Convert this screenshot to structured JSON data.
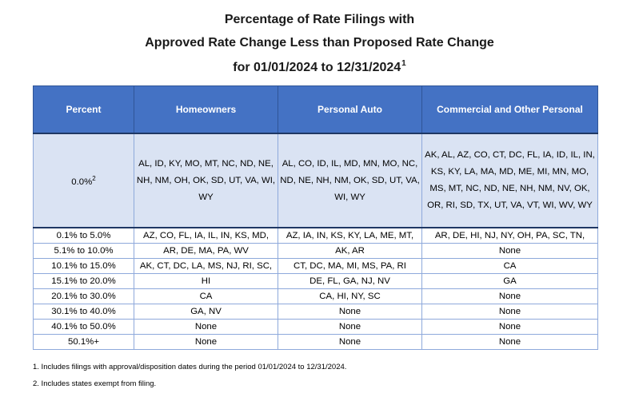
{
  "title": {
    "line1": "Percentage of Rate Filings with",
    "line2": "Approved Rate Change Less than Proposed Rate Change",
    "line3": "for 01/01/2024 to 12/31/2024",
    "line3_footnote_ref": "1"
  },
  "table": {
    "headers": [
      "Percent",
      "Homeowners",
      "Personal Auto",
      "Commercial and Other Personal"
    ],
    "zero_row": {
      "percent": "0.0%",
      "percent_footnote_ref": "2",
      "homeowners": "AL, ID, KY, MO, MT, NC, ND, NE, NH, NM, OH, OK, SD, UT, VA, WI, WY",
      "personal_auto": "AL, CO, ID, IL, MD, MN, MO, NC, ND, NE, NH, NM, OK, SD, UT, VA, WI, WY",
      "commercial": "AK, AL, AZ, CO, CT, DC, FL, IA, ID, IL, IN, KS, KY, LA, MA, MD, ME, MI, MN, MO, MS, MT, NC, ND, NE, NH, NM, NV, OK, OR, RI, SD, TX, UT, VA, VT, WI, WV, WY"
    },
    "rows": [
      {
        "percent": "0.1% to 5.0%",
        "homeowners": "AZ, CO, FL, IA, IL, IN, KS, MD,",
        "personal_auto": "AZ, IA, IN, KS, KY, LA, ME, MT,",
        "commercial": "AR, DE, HI, NJ, NY, OH, PA, SC, TN,"
      },
      {
        "percent": "5.1% to 10.0%",
        "homeowners": "AR, DE, MA, PA, WV",
        "personal_auto": "AK, AR",
        "commercial": "None"
      },
      {
        "percent": "10.1% to 15.0%",
        "homeowners": "AK, CT, DC, LA, MS, NJ, RI, SC,",
        "personal_auto": "CT, DC, MA, MI, MS, PA, RI",
        "commercial": "CA"
      },
      {
        "percent": "15.1% to 20.0%",
        "homeowners": "HI",
        "personal_auto": "DE, FL, GA, NJ, NV",
        "commercial": "GA"
      },
      {
        "percent": "20.1% to 30.0%",
        "homeowners": "CA",
        "personal_auto": "CA, HI, NY, SC",
        "commercial": "None"
      },
      {
        "percent": "30.1% to 40.0%",
        "homeowners": "GA, NV",
        "personal_auto": "None",
        "commercial": "None"
      },
      {
        "percent": "40.1% to 50.0%",
        "homeowners": "None",
        "personal_auto": "None",
        "commercial": "None"
      },
      {
        "percent": "50.1%+",
        "homeowners": "None",
        "personal_auto": "None",
        "commercial": "None"
      }
    ]
  },
  "footnotes": [
    "1. Includes filings with approval/disposition dates during the period 01/01/2024 to 12/31/2024.",
    "2. Includes states exempt from filing."
  ],
  "colors": {
    "header_bg": "#4472c4",
    "header_text": "#ffffff",
    "zero_row_bg": "#dae3f3",
    "grid": "#8ea9db"
  }
}
